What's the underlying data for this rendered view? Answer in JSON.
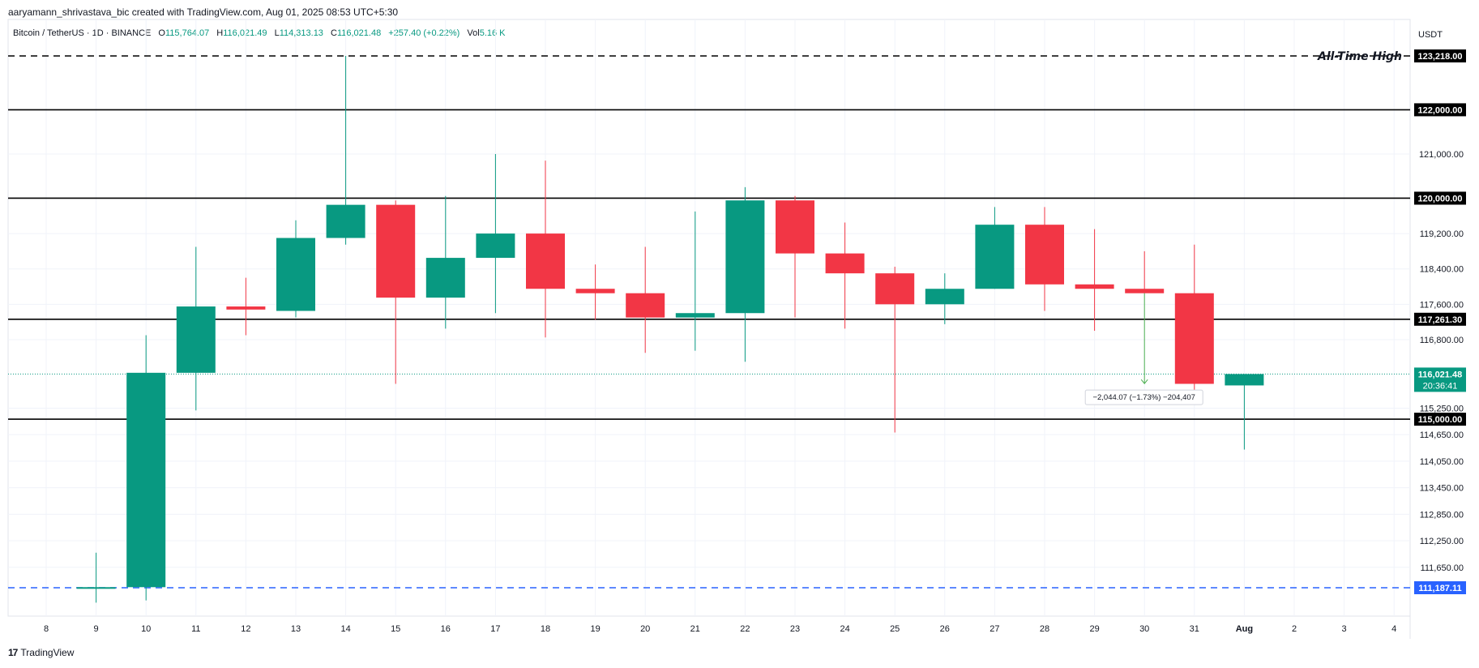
{
  "header": {
    "credit": "aaryamann_shrivastava_bic created with TradingView.com, Aug 01, 2025 08:53 UTC+5:30"
  },
  "legend": {
    "symbol": "Bitcoin / TetherUS · 1D · BINANCE",
    "open_label": "O",
    "open": "115,764.07",
    "high_label": "H",
    "high": "116,021.49",
    "low_label": "L",
    "low": "114,313.13",
    "close_label": "C",
    "close": "116,021.48",
    "change": "+257.40 (+0.22%)",
    "vol_label": "Vol",
    "vol": "5.16 K"
  },
  "footer": {
    "logo_text": "TradingView",
    "logo_mark": "17"
  },
  "colors": {
    "up": "#089981",
    "down": "#f23645",
    "grid": "#f0f3fa",
    "level": "#000000",
    "support": "#2962ff"
  },
  "chart_data": {
    "type": "candlestick",
    "currency": "USDT",
    "x_ticks": [
      "8",
      "9",
      "10",
      "11",
      "12",
      "13",
      "14",
      "15",
      "16",
      "17",
      "18",
      "19",
      "20",
      "21",
      "22",
      "23",
      "24",
      "25",
      "26",
      "27",
      "28",
      "29",
      "30",
      "31",
      "Aug",
      "2",
      "3",
      "4"
    ],
    "y_ticks": [
      "121,000.00",
      "119,200.00",
      "118,400.00",
      "117,600.00",
      "116,800.00",
      "115,250.00",
      "114,650.00",
      "114,050.00",
      "113,450.00",
      "112,850.00",
      "112,250.00",
      "111,650.00"
    ],
    "candles": [
      {
        "day": "9",
        "o": 111200,
        "h": 111980,
        "l": 110850,
        "c": 111200
      },
      {
        "day": "10",
        "o": 111200,
        "h": 116900,
        "l": 110900,
        "c": 116050
      },
      {
        "day": "11",
        "o": 116050,
        "h": 118900,
        "l": 115200,
        "c": 117550
      },
      {
        "day": "12",
        "o": 117550,
        "h": 118200,
        "l": 116900,
        "c": 117480
      },
      {
        "day": "13",
        "o": 117450,
        "h": 119500,
        "l": 117300,
        "c": 119100
      },
      {
        "day": "14",
        "o": 119100,
        "h": 123218,
        "l": 118950,
        "c": 119850
      },
      {
        "day": "15",
        "o": 119850,
        "h": 119950,
        "l": 115800,
        "c": 117750
      },
      {
        "day": "16",
        "o": 117750,
        "h": 120050,
        "l": 117050,
        "c": 118650
      },
      {
        "day": "17",
        "o": 118650,
        "h": 121000,
        "l": 117400,
        "c": 119200
      },
      {
        "day": "18",
        "o": 119200,
        "h": 120850,
        "l": 116850,
        "c": 117950
      },
      {
        "day": "19",
        "o": 117950,
        "h": 118500,
        "l": 117250,
        "c": 117850
      },
      {
        "day": "20",
        "o": 117850,
        "h": 118900,
        "l": 116500,
        "c": 117300
      },
      {
        "day": "21",
        "o": 117300,
        "h": 119700,
        "l": 116550,
        "c": 117400
      },
      {
        "day": "22",
        "o": 117400,
        "h": 120250,
        "l": 116300,
        "c": 119950
      },
      {
        "day": "23",
        "o": 119950,
        "h": 120050,
        "l": 117300,
        "c": 118750
      },
      {
        "day": "24",
        "o": 118750,
        "h": 119450,
        "l": 117050,
        "c": 118300
      },
      {
        "day": "25",
        "o": 118300,
        "h": 118450,
        "l": 114700,
        "c": 117600
      },
      {
        "day": "26",
        "o": 117600,
        "h": 118300,
        "l": 117150,
        "c": 117950
      },
      {
        "day": "27",
        "o": 117950,
        "h": 119800,
        "l": 117950,
        "c": 119400
      },
      {
        "day": "28",
        "o": 119400,
        "h": 119800,
        "l": 117450,
        "c": 118050
      },
      {
        "day": "29",
        "o": 118050,
        "h": 119300,
        "l": 117000,
        "c": 117950
      },
      {
        "day": "30",
        "o": 117950,
        "h": 118800,
        "l": 117850,
        "c": 117850
      },
      {
        "day": "31",
        "o": 117850,
        "h": 118950,
        "l": 115600,
        "c": 115800
      },
      {
        "day": "Aug",
        "o": 115764.07,
        "h": 116021.49,
        "l": 114313.13,
        "c": 116021.48
      }
    ],
    "levels": [
      {
        "value": 123218,
        "label": "123,218.00",
        "style": "dashed",
        "color": "#000000",
        "annotation": "All-Time High"
      },
      {
        "value": 122000,
        "label": "122,000.00",
        "style": "solid",
        "color": "#000000"
      },
      {
        "value": 120000,
        "label": "120,000.00",
        "style": "solid",
        "color": "#000000"
      },
      {
        "value": 117261.3,
        "label": "117,261.30",
        "style": "solid",
        "color": "#000000"
      },
      {
        "value": 115000,
        "label": "115,000.00",
        "style": "solid",
        "color": "#000000"
      },
      {
        "value": 111187.11,
        "label": "111,187.11",
        "style": "dashed",
        "color": "#2962ff"
      }
    ],
    "current_price": {
      "value": 116021.48,
      "label": "116,021.48",
      "countdown": "20:36:41"
    },
    "measure": {
      "from_day": "30",
      "from": 117850,
      "to": 115806,
      "text": "−2,044.07 (−1.73%) −204,407"
    }
  }
}
